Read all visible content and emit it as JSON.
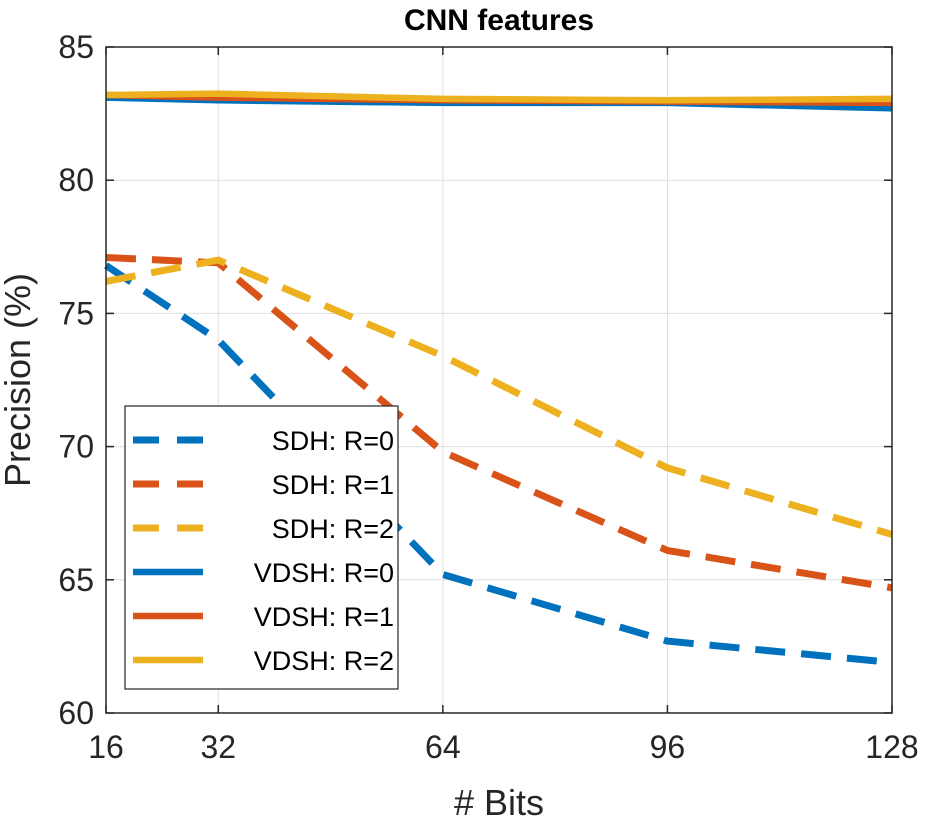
{
  "chart_data": {
    "type": "line",
    "title": "CNN features",
    "xlabel": "# Bits",
    "ylabel": "Precision (%)",
    "x": [
      16,
      32,
      64,
      96,
      128
    ],
    "x_tick_labels": [
      "16",
      "32",
      "64",
      "96",
      "128"
    ],
    "y_ticks": [
      60,
      65,
      70,
      75,
      80,
      85
    ],
    "y_tick_labels": [
      "60",
      "65",
      "70",
      "75",
      "80",
      "85"
    ],
    "ylim": [
      60,
      85
    ],
    "grid": true,
    "legend_position": "bottom-left",
    "series": [
      {
        "name": "SDH: R=0",
        "style": "dashed",
        "color": "#0072BD",
        "values": [
          76.8,
          74.0,
          65.2,
          62.7,
          61.9
        ]
      },
      {
        "name": "SDH: R=1",
        "style": "dashed",
        "color": "#D95319",
        "values": [
          77.1,
          76.9,
          69.8,
          66.1,
          64.7
        ]
      },
      {
        "name": "SDH: R=2",
        "style": "dashed",
        "color": "#EDB120",
        "values": [
          76.2,
          77.0,
          73.4,
          69.2,
          66.7
        ]
      },
      {
        "name": "VDSH: R=0",
        "style": "solid",
        "color": "#0072BD",
        "values": [
          83.1,
          83.0,
          82.9,
          82.9,
          82.7
        ]
      },
      {
        "name": "VDSH: R=1",
        "style": "solid",
        "color": "#D95319",
        "values": [
          83.2,
          83.1,
          83.0,
          82.95,
          82.9
        ]
      },
      {
        "name": "VDSH: R=2",
        "style": "solid",
        "color": "#EDB120",
        "values": [
          83.2,
          83.25,
          83.05,
          83.0,
          83.05
        ]
      }
    ]
  }
}
